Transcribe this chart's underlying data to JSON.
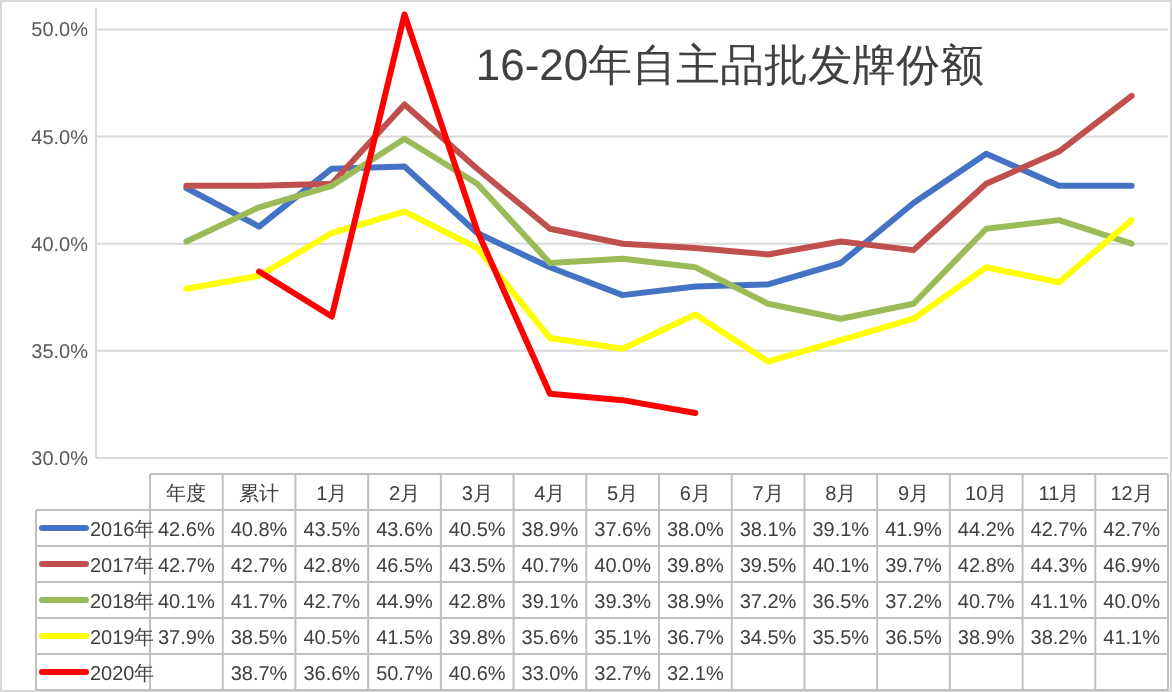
{
  "chart_data": {
    "type": "line",
    "title": "16-20年自主品批发牌份额",
    "categories": [
      "年度",
      "累计",
      "1月",
      "2月",
      "3月",
      "4月",
      "5月",
      "6月",
      "7月",
      "8月",
      "9月",
      "10月",
      "11月",
      "12月"
    ],
    "series": [
      {
        "name": "2016年",
        "color": "#4472c4",
        "values": [
          42.6,
          40.8,
          43.5,
          43.6,
          40.5,
          38.9,
          37.6,
          38.0,
          38.1,
          39.1,
          41.9,
          44.2,
          42.7,
          42.7
        ],
        "value_labels": [
          "42.6%",
          "40.8%",
          "43.5%",
          "43.6%",
          "40.5%",
          "38.9%",
          "37.6%",
          "38.0%",
          "38.1%",
          "39.1%",
          "41.9%",
          "44.2%",
          "42.7%",
          "42.7%"
        ]
      },
      {
        "name": "2017年",
        "color": "#c0504d",
        "values": [
          42.7,
          42.7,
          42.8,
          46.5,
          43.5,
          40.7,
          40.0,
          39.8,
          39.5,
          40.1,
          39.7,
          42.8,
          44.3,
          46.9
        ],
        "value_labels": [
          "42.7%",
          "42.7%",
          "42.8%",
          "46.5%",
          "43.5%",
          "40.7%",
          "40.0%",
          "39.8%",
          "39.5%",
          "40.1%",
          "39.7%",
          "42.8%",
          "44.3%",
          "46.9%"
        ]
      },
      {
        "name": "2018年",
        "color": "#9bbb59",
        "values": [
          40.1,
          41.7,
          42.7,
          44.9,
          42.8,
          39.1,
          39.3,
          38.9,
          37.2,
          36.5,
          37.2,
          40.7,
          41.1,
          40.0
        ],
        "value_labels": [
          "40.1%",
          "41.7%",
          "42.7%",
          "44.9%",
          "42.8%",
          "39.1%",
          "39.3%",
          "38.9%",
          "37.2%",
          "36.5%",
          "37.2%",
          "40.7%",
          "41.1%",
          "40.0%"
        ]
      },
      {
        "name": "2019年",
        "color": "#ffff00",
        "values": [
          37.9,
          38.5,
          40.5,
          41.5,
          39.8,
          35.6,
          35.1,
          36.7,
          34.5,
          35.5,
          36.5,
          38.9,
          38.2,
          41.1
        ],
        "value_labels": [
          "37.9%",
          "38.5%",
          "40.5%",
          "41.5%",
          "39.8%",
          "35.6%",
          "35.1%",
          "36.7%",
          "34.5%",
          "35.5%",
          "36.5%",
          "38.9%",
          "38.2%",
          "41.1%"
        ]
      },
      {
        "name": "2020年",
        "color": "#ff0000",
        "values": [
          null,
          38.7,
          36.6,
          50.7,
          40.6,
          33.0,
          32.7,
          32.1,
          null,
          null,
          null,
          null,
          null,
          null
        ],
        "value_labels": [
          null,
          "38.7%",
          "36.6%",
          "50.7%",
          "40.6%",
          "33.0%",
          "32.7%",
          "32.1%",
          null,
          null,
          null,
          null,
          null,
          null
        ]
      }
    ],
    "ylim": [
      30,
      51
    ],
    "yticks": [
      {
        "value": 30,
        "label": "30.0%"
      },
      {
        "value": 35,
        "label": "35.0%"
      },
      {
        "value": 40,
        "label": "40.0%"
      },
      {
        "value": 45,
        "label": "45.0%"
      },
      {
        "value": 50,
        "label": "50.0%"
      }
    ],
    "grid": "y",
    "legend": "bottom"
  }
}
